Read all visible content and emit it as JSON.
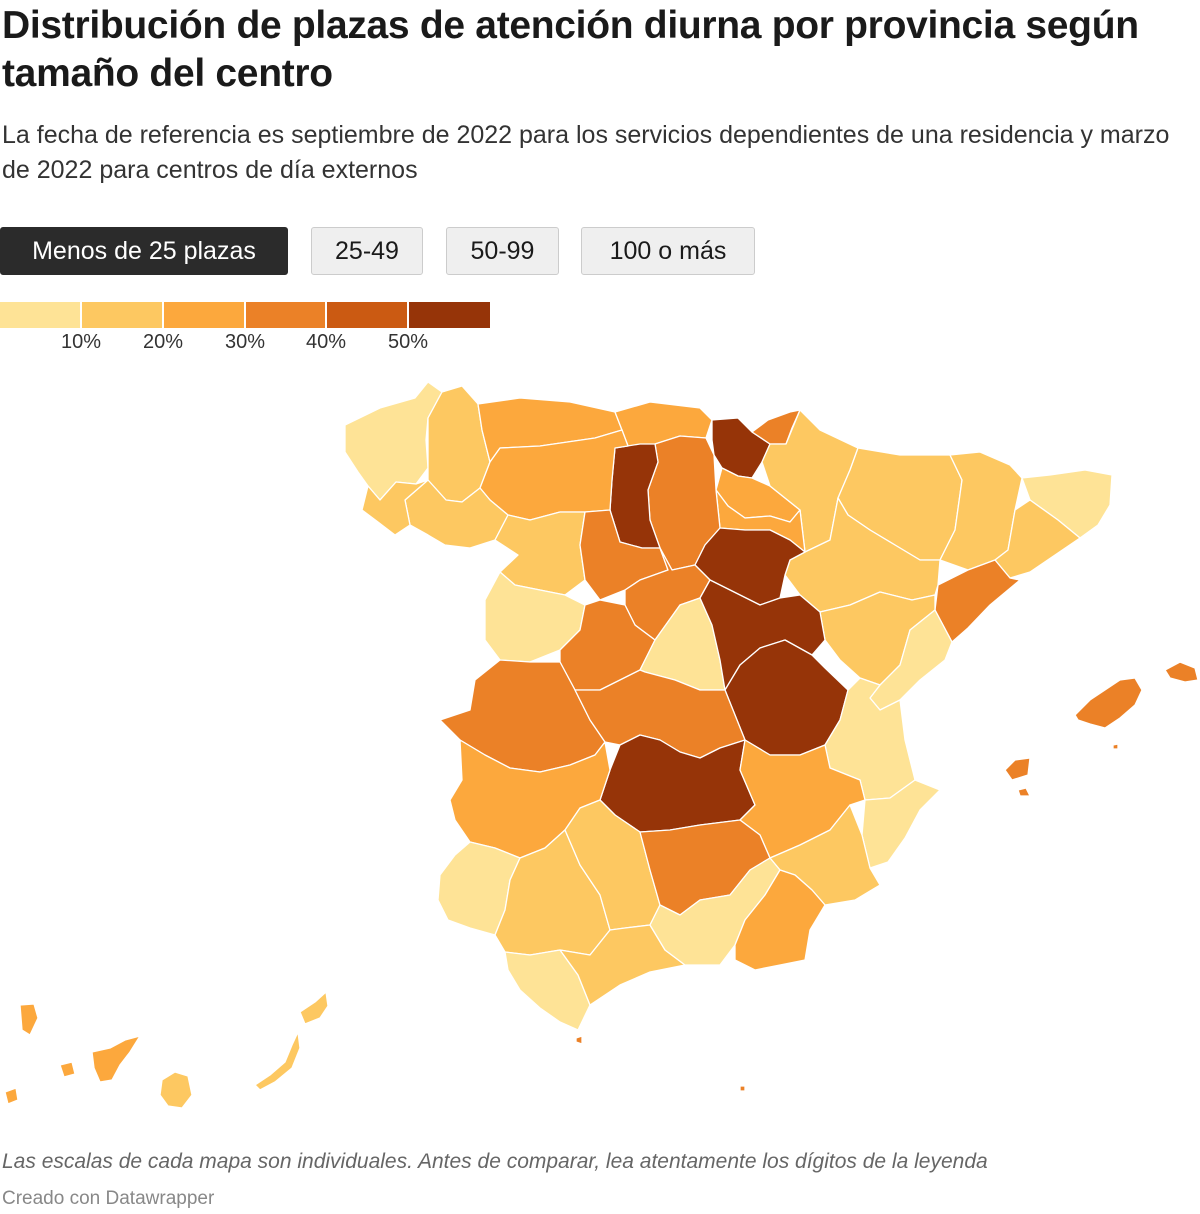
{
  "header": {
    "title": "Distribución de plazas de atención diurna por provincia según tamaño del centro",
    "subtitle": "La fecha de referencia es septiembre de 2022 para los servicios dependientes de una residencia y marzo de 2022 para centros de día externos"
  },
  "tabs": [
    {
      "label": "Menos de 25 plazas",
      "active": true
    },
    {
      "label": "25-49",
      "active": false
    },
    {
      "label": "50-99",
      "active": false
    },
    {
      "label": "100 o más",
      "active": false
    }
  ],
  "legend": {
    "ticks": [
      "10%",
      "20%",
      "30%",
      "40%",
      "50%"
    ],
    "colors": [
      "#fee396",
      "#fdc861",
      "#fca83d",
      "#eb8127",
      "#cb5a12",
      "#963408"
    ],
    "thresholds": [
      10,
      20,
      30,
      40,
      50
    ]
  },
  "map": {
    "unit": "%",
    "provinces": [
      {
        "name": "A Coruña",
        "bin": 0
      },
      {
        "name": "Lugo",
        "bin": 1
      },
      {
        "name": "Asturias",
        "bin": 2
      },
      {
        "name": "Cantabria",
        "bin": 2
      },
      {
        "name": "Bizkaia",
        "bin": 5
      },
      {
        "name": "Gipuzkoa",
        "bin": 3
      },
      {
        "name": "Araba/Álava",
        "bin": 2
      },
      {
        "name": "Navarra",
        "bin": 1
      },
      {
        "name": "Huesca",
        "bin": 1
      },
      {
        "name": "Lleida",
        "bin": 1
      },
      {
        "name": "Girona",
        "bin": 0
      },
      {
        "name": "Barcelona",
        "bin": 1
      },
      {
        "name": "Tarragona",
        "bin": 3
      },
      {
        "name": "Zaragoza",
        "bin": 1
      },
      {
        "name": "Teruel",
        "bin": 1
      },
      {
        "name": "La Rioja",
        "bin": 2
      },
      {
        "name": "Burgos",
        "bin": 3
      },
      {
        "name": "Palencia",
        "bin": 5
      },
      {
        "name": "León",
        "bin": 2
      },
      {
        "name": "Ourense",
        "bin": 1
      },
      {
        "name": "Pontevedra",
        "bin": 1
      },
      {
        "name": "Zamora",
        "bin": 1
      },
      {
        "name": "Valladolid",
        "bin": 3
      },
      {
        "name": "Soria",
        "bin": 5
      },
      {
        "name": "Salamanca",
        "bin": 0
      },
      {
        "name": "Segovia",
        "bin": 3
      },
      {
        "name": "Ávila",
        "bin": 3
      },
      {
        "name": "Madrid",
        "bin": 0
      },
      {
        "name": "Guadalajara",
        "bin": 5
      },
      {
        "name": "Cuenca",
        "bin": 5
      },
      {
        "name": "Castellón",
        "bin": 0
      },
      {
        "name": "Valencia",
        "bin": 0
      },
      {
        "name": "Alicante",
        "bin": 0
      },
      {
        "name": "Cáceres",
        "bin": 3
      },
      {
        "name": "Toledo",
        "bin": 3
      },
      {
        "name": "Ciudad Real",
        "bin": 5
      },
      {
        "name": "Albacete",
        "bin": 2
      },
      {
        "name": "Badajoz",
        "bin": 2
      },
      {
        "name": "Huelva",
        "bin": 0
      },
      {
        "name": "Sevilla",
        "bin": 1
      },
      {
        "name": "Córdoba",
        "bin": 1
      },
      {
        "name": "Jaén",
        "bin": 3
      },
      {
        "name": "Murcia",
        "bin": 1
      },
      {
        "name": "Cádiz",
        "bin": 0
      },
      {
        "name": "Málaga",
        "bin": 1
      },
      {
        "name": "Granada",
        "bin": 0
      },
      {
        "name": "Almería",
        "bin": 2
      },
      {
        "name": "Illes Balears",
        "bin": 3
      },
      {
        "name": "Santa Cruz de Tenerife",
        "bin": 2
      },
      {
        "name": "Las Palmas",
        "bin": 1
      },
      {
        "name": "Ceuta",
        "bin": 3
      },
      {
        "name": "Melilla",
        "bin": 3
      }
    ]
  },
  "footer": {
    "note": "Las escalas de cada mapa son individuales. Antes de comparar, lea atentamente los dígitos de la leyenda",
    "credit": "Creado con Datawrapper"
  }
}
